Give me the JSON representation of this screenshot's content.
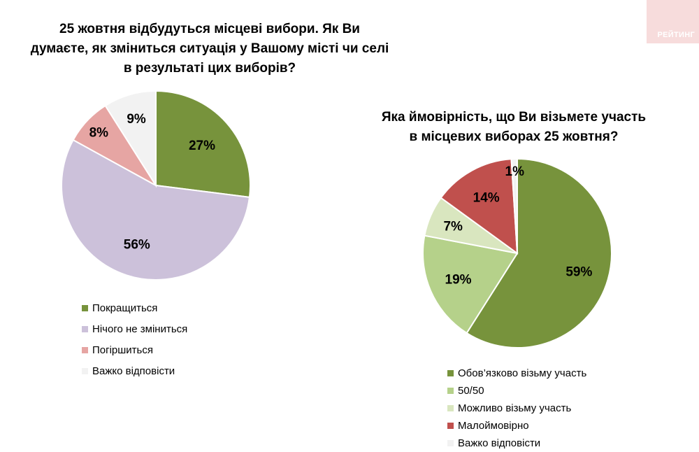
{
  "brand": {
    "label": "РЕЙТИНГ"
  },
  "charts": [
    {
      "title": "25 жовтня відбудуться місцеві вибори. Як Ви думаєте, як зміниться ситуація у Вашому місті чи селі в результаті цих виборів?",
      "title_lines": [
        "25 жовтня відбудуться місцеві вибори. Як Ви",
        "думаєте, як зміниться ситуація у Вашому місті чи селі",
        "в результаті цих виборів?"
      ]
    },
    {
      "title": "Яка ймовірність, що Ви візьмете участь в місцевих виборах 25 жовтня?",
      "title_lines": [
        "Яка ймовірність, що Ви візьмете участь",
        "в місцевих виборах 25 жовтня?"
      ]
    }
  ],
  "chart_data": [
    {
      "type": "pie",
      "title": "25 жовтня відбудуться місцеві вибори. Як Ви думаєте, як зміниться ситуація у Вашому місті чи селі в результаті цих виборів?",
      "categories": [
        "Покращиться",
        "Нічого не зміниться",
        "Погіршиться",
        "Важко відповісти"
      ],
      "values": [
        27,
        56,
        8,
        9
      ],
      "labels": [
        "27%",
        "56%",
        "8%",
        "9%"
      ],
      "colors": [
        "#77933c",
        "#ccc1da",
        "#e6a5a3",
        "#f2f2f2"
      ],
      "legend": "bottom-left"
    },
    {
      "type": "pie",
      "title": "Яка ймовірність, що Ви візьмете участь в місцевих виборах 25 жовтня?",
      "categories": [
        "Обов’язково візьму участь",
        "50/50",
        "Можливо візьму участь",
        "Малоймовірно",
        "Важко відповісти"
      ],
      "values": [
        59,
        19,
        7,
        14,
        1
      ],
      "labels": [
        "59%",
        "19%",
        "7%",
        "14%",
        "1%"
      ],
      "colors": [
        "#77933c",
        "#b5d18a",
        "#d9e6bf",
        "#c0504d",
        "#f2f2f2"
      ],
      "legend": "bottom"
    }
  ]
}
